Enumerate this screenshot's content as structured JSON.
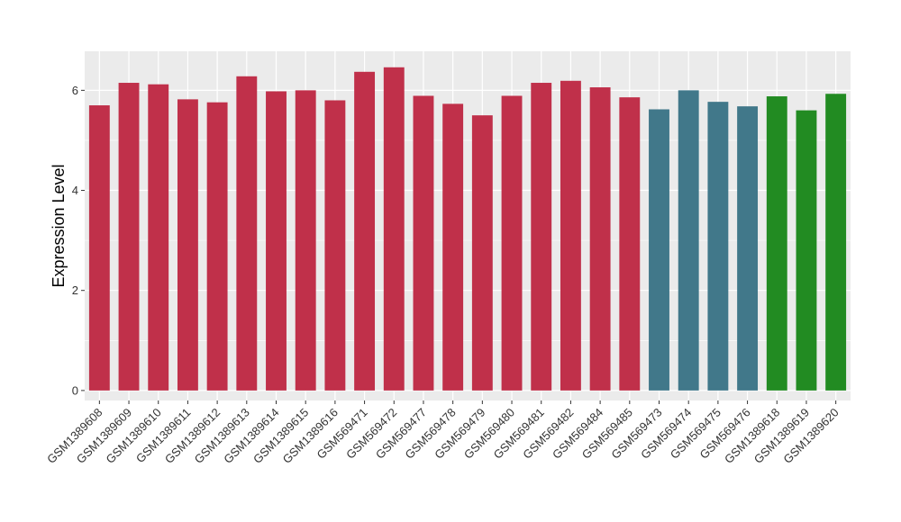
{
  "chart_data": {
    "type": "bar",
    "ylabel": "Expression Level",
    "xlabel": "",
    "title": "",
    "ylim": [
      -0.2,
      6.78
    ],
    "yticks": [
      0,
      2,
      4,
      6
    ],
    "grid": true,
    "legend": "none",
    "panel_background": "#EBEBEB",
    "grid_color": "#FFFFFF",
    "categories": [
      "GSM1389608",
      "GSM1389609",
      "GSM1389610",
      "GSM1389611",
      "GSM1389612",
      "GSM1389613",
      "GSM1389614",
      "GSM1389615",
      "GSM1389616",
      "GSM569471",
      "GSM569472",
      "GSM569477",
      "GSM569478",
      "GSM569479",
      "GSM569480",
      "GSM569481",
      "GSM569482",
      "GSM569484",
      "GSM569485",
      "GSM569473",
      "GSM569474",
      "GSM569475",
      "GSM569476",
      "GSM1389618",
      "GSM1389619",
      "GSM1389620"
    ],
    "values": [
      5.7,
      6.15,
      6.12,
      5.82,
      5.76,
      6.28,
      5.98,
      6.0,
      5.8,
      6.37,
      6.46,
      5.89,
      5.73,
      5.5,
      5.89,
      6.15,
      6.19,
      6.06,
      5.86,
      5.62,
      6.0,
      5.77,
      5.68,
      5.88,
      5.6,
      5.93
    ],
    "groups": [
      0,
      0,
      0,
      0,
      0,
      0,
      0,
      0,
      0,
      0,
      0,
      0,
      0,
      0,
      0,
      0,
      0,
      0,
      0,
      1,
      1,
      1,
      1,
      2,
      2,
      2
    ],
    "group_colors": [
      "#C0304A",
      "#41788A",
      "#228B22"
    ]
  }
}
